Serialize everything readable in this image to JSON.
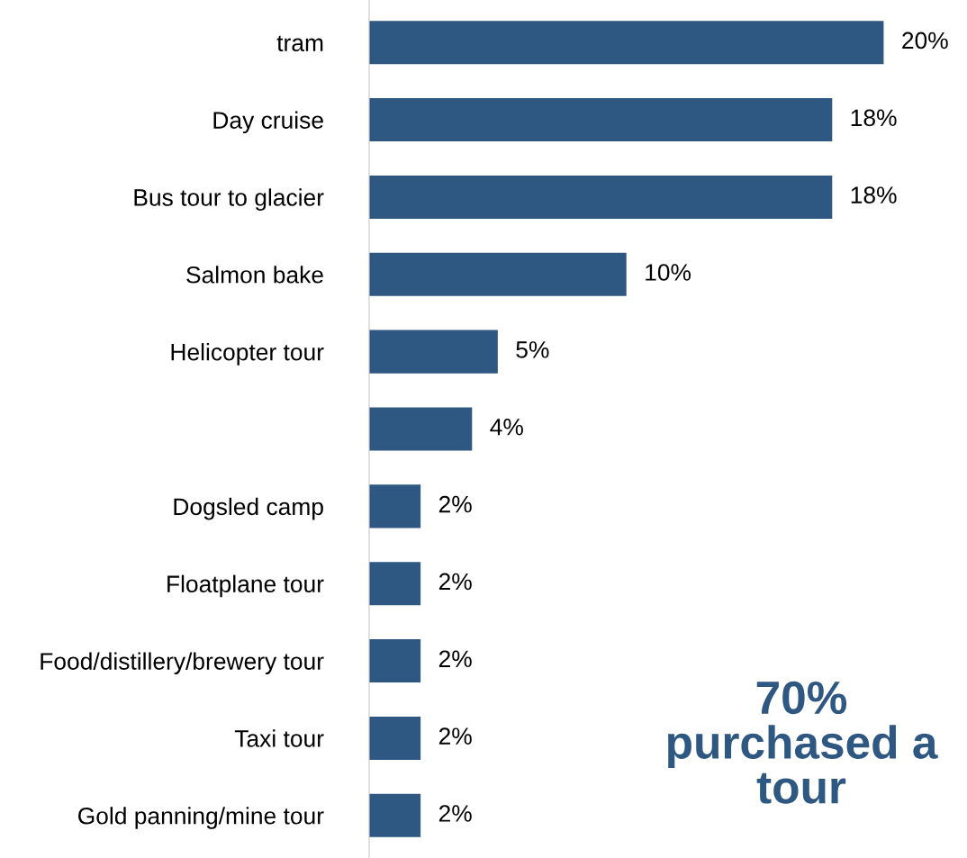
{
  "chart_data": {
    "type": "bar",
    "orientation": "horizontal",
    "categories": [
      "tram",
      "Day cruise",
      "Bus tour to glacier",
      "Salmon bake",
      "Helicopter tour",
      null,
      "Dogsled camp",
      "Floatplane tour",
      "Food/distillery/brewery tour",
      "Taxi tour",
      "Gold panning/mine tour"
    ],
    "values": [
      20,
      18,
      18,
      10,
      5,
      4,
      2,
      2,
      2,
      2,
      2
    ],
    "value_labels": [
      "20%",
      "18%",
      "18%",
      "10%",
      "5%",
      "4%",
      "2%",
      "2%",
      "2%",
      "2%",
      "2%"
    ],
    "color": "#2e5781",
    "tick_labels": "y",
    "grid": false,
    "legend": false,
    "annotations": [
      "70%\npurchased a\ntour"
    ]
  }
}
